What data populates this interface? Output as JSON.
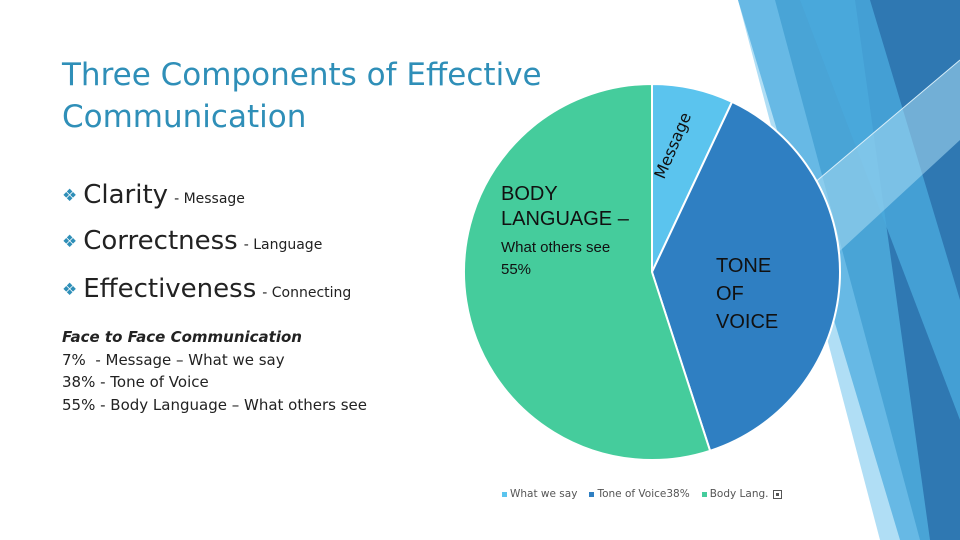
{
  "slide": {
    "title": "Three Components of Effective Communication",
    "colors": {
      "title": "#2f8fb8",
      "accent_dark": "#2b6f9e",
      "accent_light": "#6cc7ef"
    }
  },
  "bullets": [
    {
      "main": "Clarity",
      "sub": "- Message",
      "icon": "diamond-arrow-icon"
    },
    {
      "main": "Correctness",
      "sub": "- Language",
      "icon": "diamond-arrow-icon"
    },
    {
      "main": "Effectiveness",
      "sub": "- Connecting",
      "icon": "diamond-arrow-icon"
    }
  ],
  "face_to_face": {
    "heading": "Face to Face Communication",
    "lines": [
      "7%  - Message – What we say",
      "38% - Tone of Voice",
      "55% - Body Language – What others see"
    ]
  },
  "chart_data": {
    "type": "pie",
    "categories": [
      "What we say",
      "Tone of Voice38%",
      "Body Lang."
    ],
    "values": [
      7,
      38,
      55
    ],
    "colors": [
      "#5bc4ee",
      "#2f7fc2",
      "#45cc9c"
    ],
    "slice_labels": {
      "message": "Message",
      "tone_voice": "TONE OF VOICE",
      "body_title": "BODY LANGUAGE –",
      "body_sub": "What others see",
      "body_pct": "55%"
    },
    "legend": [
      "What we say",
      "Tone of Voice38%",
      "Body Lang."
    ],
    "legend_placement": "bottom"
  }
}
